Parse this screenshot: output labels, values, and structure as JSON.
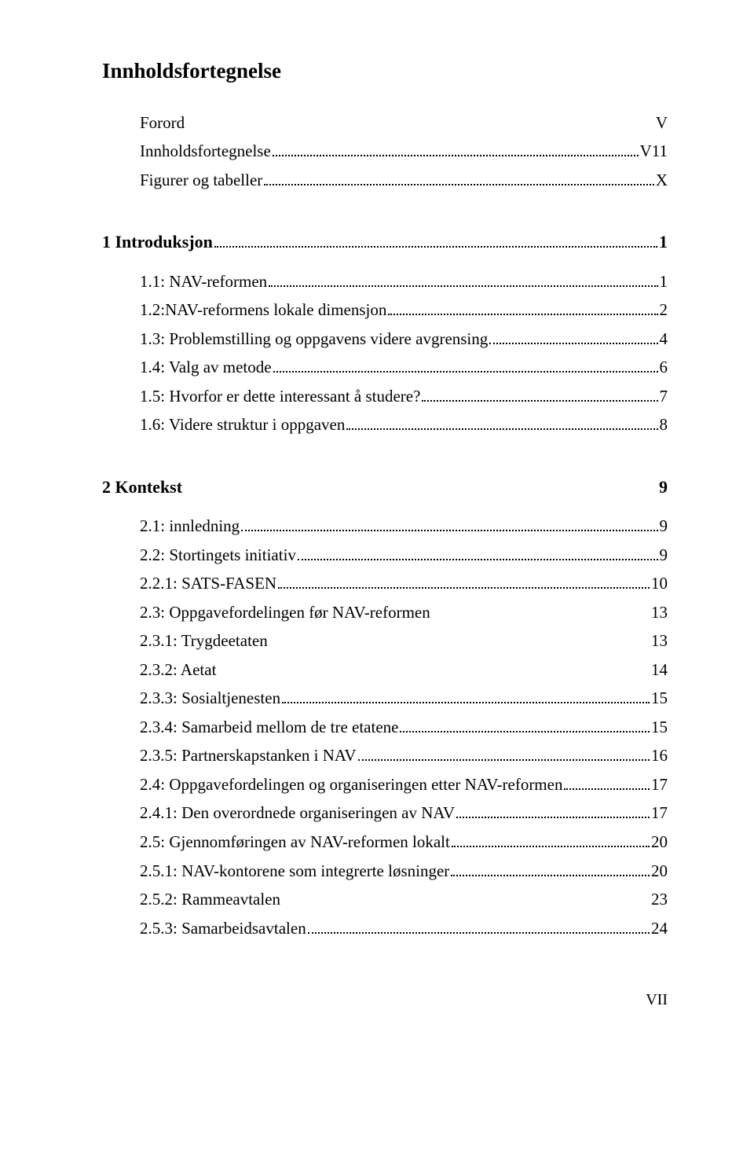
{
  "title": "Innholdsfortegnelse",
  "front": [
    {
      "label": "Forord",
      "page": "V",
      "leader": "solid"
    },
    {
      "label": "Innholdsfortegnelse",
      "page": "V11",
      "leader": "dots"
    },
    {
      "label": "Figurer og tabeller",
      "page": "X",
      "leader": "dots"
    }
  ],
  "sections": [
    {
      "head": {
        "label": "1 Introduksjon",
        "page": "1",
        "leader": "dots"
      },
      "entries": [
        {
          "label": "1.1: NAV-reformen",
          "page": "1",
          "leader": "dots"
        },
        {
          "label": "1.2:NAV-reformens lokale dimensjon",
          "page": "2",
          "leader": "dots"
        },
        {
          "label": "1.3: Problemstilling og oppgavens videre avgrensing",
          "page": "4",
          "leader": "dots"
        },
        {
          "label": "1.4: Valg av metode",
          "page": "6",
          "leader": "dots"
        },
        {
          "label": "1.5: Hvorfor er dette interessant å studere?",
          "page": "7",
          "leader": "dots"
        },
        {
          "label": "1.6: Videre struktur i oppgaven",
          "page": "8",
          "leader": "dots"
        }
      ]
    },
    {
      "head": {
        "label": "2 Kontekst",
        "page": "9",
        "leader": "solid"
      },
      "entries": [
        {
          "label": "2.1: innledning",
          "page": "9",
          "leader": "dots"
        },
        {
          "label": "2.2: Stortingets initiativ",
          "page": "9",
          "leader": "dots"
        },
        {
          "label": "2.2.1: SATS-FASEN",
          "page": "10",
          "leader": "dots"
        },
        {
          "label": "2.3: Oppgavefordelingen før NAV-reformen",
          "page": "13",
          "leader": "solid"
        },
        {
          "label": "2.3.1: Trygdeetaten",
          "page": "13",
          "leader": "solid"
        },
        {
          "label": "2.3.2: Aetat",
          "page": "14",
          "leader": "solid"
        },
        {
          "label": "2.3.3: Sosialtjenesten",
          "page": "15",
          "leader": "dots"
        },
        {
          "label": "2.3.4: Samarbeid mellom de tre etatene",
          "page": "15",
          "leader": "dots"
        },
        {
          "label": "2.3.5: Partnerskapstanken i NAV",
          "page": "16",
          "leader": "dots"
        },
        {
          "label": "2.4: Oppgavefordelingen og organiseringen etter NAV-reformen",
          "page": "17",
          "leader": "dots"
        },
        {
          "label": "2.4.1: Den overordnede organiseringen av NAV",
          "page": "17",
          "leader": "dots"
        },
        {
          "label": "2.5: Gjennomføringen av NAV-reformen lokalt",
          "page": "20",
          "leader": "dots"
        },
        {
          "label": "2.5.1: NAV-kontorene som integrerte løsninger",
          "page": "20",
          "leader": "dots"
        },
        {
          "label": "2.5.2: Rammeavtalen",
          "page": "23",
          "leader": "solid"
        },
        {
          "label": "2.5.3: Samarbeidsavtalen",
          "page": "24",
          "leader": "dots"
        }
      ]
    }
  ],
  "page_number": "VII"
}
